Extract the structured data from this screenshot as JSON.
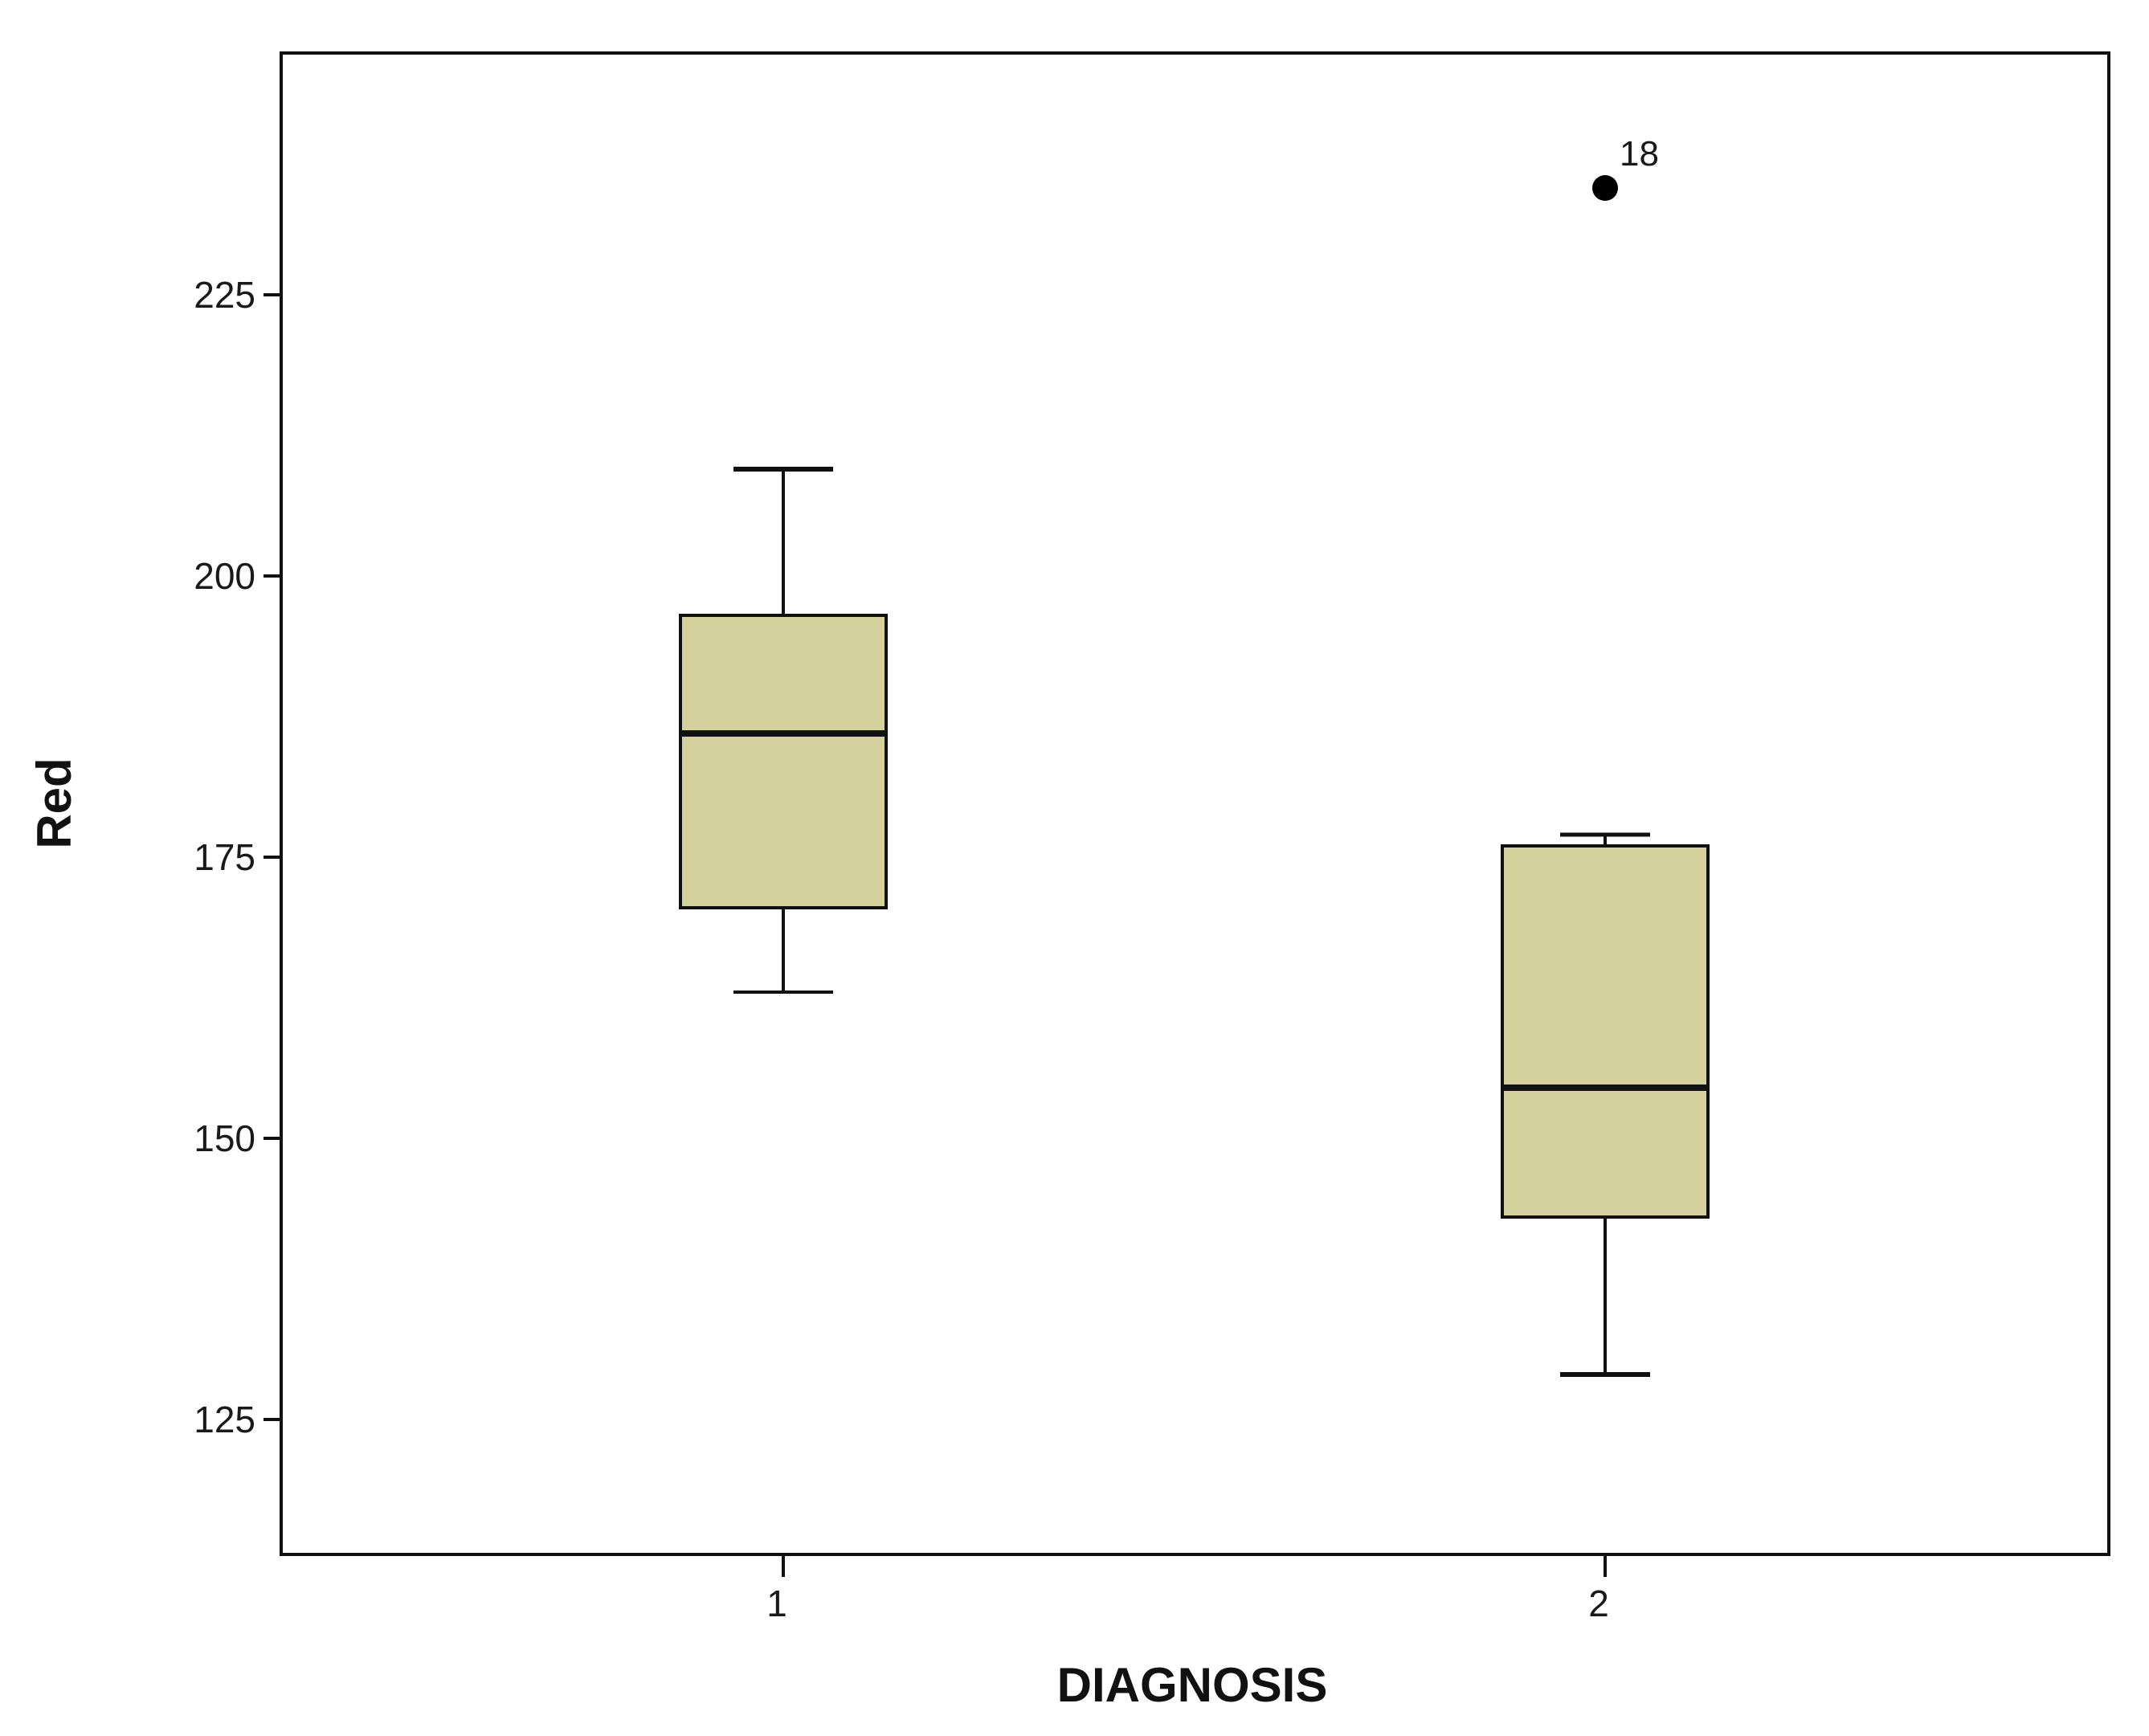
{
  "chart_data": {
    "type": "boxplot",
    "title": "",
    "xlabel": "DIAGNOSIS",
    "ylabel": "Red",
    "ylim": [
      114,
      248
    ],
    "yticks": [
      125,
      150,
      175,
      200,
      225
    ],
    "ytick_labels": [
      "125",
      "150",
      "175",
      "200",
      "225"
    ],
    "categories": [
      "1",
      "2"
    ],
    "grid": false,
    "box_color": "#d5d19d",
    "line_color": "#111111",
    "boxes": [
      {
        "category": "1",
        "whisker_low": 163,
        "q1": 170.5,
        "median": 186,
        "q3": 196.5,
        "whisker_high": 209.5,
        "outliers": []
      },
      {
        "category": "2",
        "whisker_low": 129,
        "q1": 143,
        "median": 154.5,
        "q3": 176,
        "whisker_high": 177,
        "outliers": [
          {
            "value": 234.5,
            "label": "18"
          }
        ]
      }
    ]
  }
}
